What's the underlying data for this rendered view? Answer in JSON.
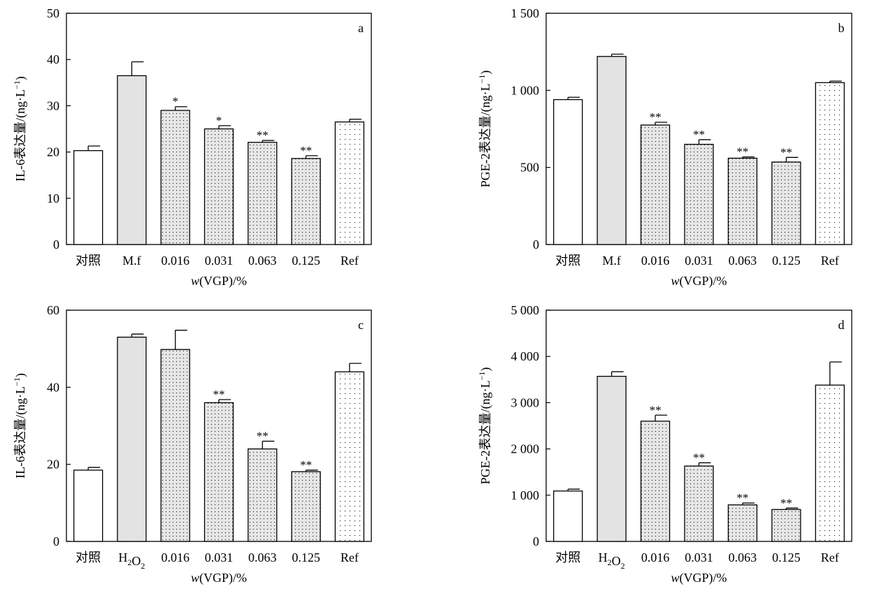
{
  "chart_data": [
    {
      "type": "bar",
      "panel_label": "a",
      "ylabel": "IL-6表达量/(ng·L⁻¹)",
      "xlabel": "w(VGP)/%",
      "ylim": [
        0,
        50
      ],
      "yticks": [
        0,
        10,
        20,
        30,
        40,
        50
      ],
      "ytick_labels": [
        "0",
        "10",
        "20",
        "30",
        "40",
        "50"
      ],
      "categories": [
        "对照",
        "M.f",
        "0.016",
        "0.031",
        "0.063",
        "0.125",
        "Ref"
      ],
      "values": [
        20.3,
        36.5,
        29.0,
        25.0,
        22.1,
        18.6,
        26.5
      ],
      "errors": [
        1.0,
        3.0,
        0.8,
        0.7,
        0.4,
        0.6,
        0.6
      ],
      "significance": [
        "",
        "",
        "*",
        "*",
        "**",
        "**",
        ""
      ],
      "fills": [
        "white",
        "gray",
        "dots",
        "dots",
        "dots",
        "dots",
        "sparse"
      ]
    },
    {
      "type": "bar",
      "panel_label": "b",
      "ylabel": "PGE-2表达量/(ng·L⁻¹)",
      "xlabel": "w(VGP)/%",
      "ylim": [
        0,
        1500
      ],
      "yticks": [
        0,
        500,
        1000,
        1500
      ],
      "ytick_labels": [
        "0",
        "500",
        "1 000",
        "1 500"
      ],
      "categories": [
        "对照",
        "M.f",
        "0.016",
        "0.031",
        "0.063",
        "0.125",
        "Ref"
      ],
      "values": [
        940,
        1220,
        775,
        650,
        560,
        535,
        1050
      ],
      "errors": [
        15,
        15,
        18,
        30,
        8,
        30,
        10
      ],
      "significance": [
        "",
        "",
        "**",
        "**",
        "**",
        "**",
        ""
      ],
      "fills": [
        "white",
        "gray",
        "dots",
        "dots",
        "dots",
        "dots",
        "sparse"
      ]
    },
    {
      "type": "bar",
      "panel_label": "c",
      "ylabel": "IL-6表达量/(ng·L⁻¹)",
      "xlabel": "w(VGP)/%",
      "ylim": [
        0,
        60
      ],
      "yticks": [
        0,
        20,
        40,
        60
      ],
      "ytick_labels": [
        "0",
        "20",
        "40",
        "60"
      ],
      "categories": [
        "对照",
        "H₂O₂",
        "0.016",
        "0.031",
        "0.063",
        "0.125",
        "Ref"
      ],
      "values": [
        18.5,
        53.0,
        49.8,
        36.0,
        24.0,
        18.1,
        44.0
      ],
      "errors": [
        0.7,
        0.8,
        5.0,
        0.8,
        2.0,
        0.4,
        2.2
      ],
      "significance": [
        "",
        "",
        "",
        "**",
        "**",
        "**",
        ""
      ],
      "fills": [
        "white",
        "gray",
        "dots",
        "dots",
        "dots",
        "dots",
        "sparse"
      ]
    },
    {
      "type": "bar",
      "panel_label": "d",
      "ylabel": "PGE-2表达量/(ng·L⁻¹)",
      "xlabel": "w(VGP)/%",
      "ylim": [
        0,
        5000
      ],
      "yticks": [
        0,
        1000,
        2000,
        3000,
        4000,
        5000
      ],
      "ytick_labels": [
        "0",
        "1 000",
        "2 000",
        "3 000",
        "4 000",
        "5 000"
      ],
      "categories": [
        "对照",
        "H₂O₂",
        "0.016",
        "0.031",
        "0.063",
        "0.125",
        "Ref"
      ],
      "values": [
        1090,
        3570,
        2600,
        1630,
        790,
        690,
        3380
      ],
      "errors": [
        40,
        100,
        130,
        70,
        40,
        30,
        500
      ],
      "significance": [
        "",
        "",
        "**",
        "**",
        "**",
        "**",
        ""
      ],
      "fills": [
        "white",
        "gray",
        "dots",
        "dots",
        "dots",
        "dots",
        "sparse"
      ]
    }
  ]
}
